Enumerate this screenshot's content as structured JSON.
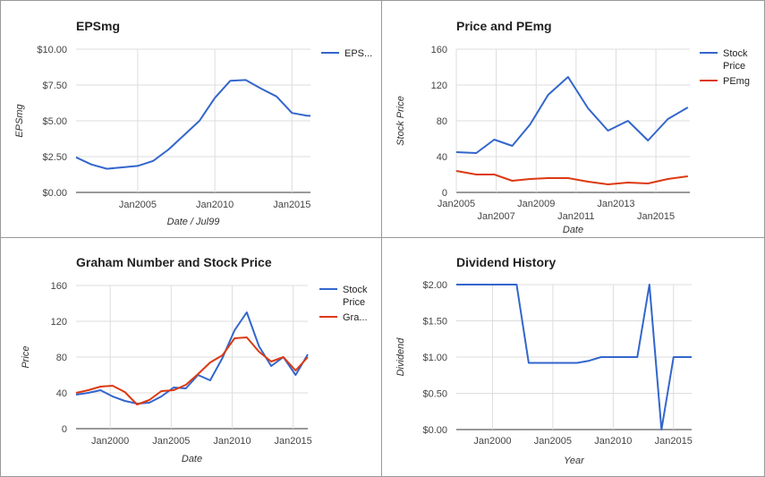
{
  "colors": {
    "blue": "#3366cc",
    "red": "#dc3912"
  },
  "chart_data": [
    {
      "type": "line",
      "title": "EPSmg",
      "xlabel": "Date / Jul99",
      "ylabel": "EPSmg",
      "ylim": [
        0,
        10
      ],
      "xlim": [
        2001,
        2016.2
      ],
      "yticks": [
        "$0.00",
        "$2.50",
        "$5.00",
        "$7.50",
        "$10.00"
      ],
      "ytick_values": [
        0,
        2.5,
        5,
        7.5,
        10
      ],
      "xticks": [
        "Jan2005",
        "Jan2010",
        "Jan2015"
      ],
      "xtick_values": [
        2005,
        2010,
        2015
      ],
      "legend_position": "right",
      "series": [
        {
          "name": "EPS...",
          "color": "#3366cc",
          "x": [
            2001,
            2002,
            2003,
            2004,
            2005,
            2006,
            2007,
            2008,
            2009,
            2010,
            2011,
            2012,
            2013,
            2014,
            2015,
            2016,
            2016.2
          ],
          "y": [
            2.45,
            1.95,
            1.65,
            1.75,
            1.85,
            2.2,
            3.0,
            4.0,
            5.0,
            6.6,
            7.8,
            7.85,
            7.25,
            6.7,
            5.55,
            5.35,
            5.35
          ]
        }
      ]
    },
    {
      "type": "line",
      "title": "Price and PEmg",
      "xlabel": "Date",
      "ylabel": "Stock Price",
      "ylim": [
        0,
        160
      ],
      "xlim": [
        2005,
        2016.7
      ],
      "yticks": [
        "0",
        "40",
        "80",
        "120",
        "160"
      ],
      "ytick_values": [
        0,
        40,
        80,
        120,
        160
      ],
      "xticks": [
        "Jan2005",
        "Jan2007",
        "Jan2009",
        "Jan2011",
        "Jan2013",
        "Jan2015"
      ],
      "xtick_values": [
        2005,
        2007,
        2009,
        2011,
        2013,
        2015
      ],
      "legend_position": "right",
      "series": [
        {
          "name": "Stock Price",
          "color": "#3366cc",
          "x": [
            2005,
            2006,
            2006.9,
            2007.8,
            2008.7,
            2009.6,
            2010.6,
            2011.6,
            2012.6,
            2013.6,
            2014.6,
            2015.6,
            2016.6
          ],
          "y": [
            45,
            44,
            59,
            52,
            76,
            109,
            129,
            94,
            69,
            80,
            58,
            82,
            95
          ]
        },
        {
          "name": "PEmg",
          "color": "#dc3912",
          "x": [
            2005,
            2006,
            2006.9,
            2007.8,
            2008.7,
            2009.6,
            2010.6,
            2011.6,
            2012.6,
            2013.6,
            2014.6,
            2015.6,
            2016.6
          ],
          "y": [
            24,
            20,
            20,
            13,
            15,
            16,
            16,
            12,
            9,
            11,
            10,
            15,
            18
          ]
        }
      ]
    },
    {
      "type": "line",
      "title": "Graham Number and Stock Price",
      "xlabel": "Date",
      "ylabel": "Price",
      "ylim": [
        0,
        160
      ],
      "xlim": [
        1997.2,
        2016.2
      ],
      "yticks": [
        "0",
        "40",
        "80",
        "120",
        "160"
      ],
      "ytick_values": [
        0,
        40,
        80,
        120,
        160
      ],
      "xticks": [
        "Jan2000",
        "Jan2005",
        "Jan2010",
        "Jan2015"
      ],
      "xtick_values": [
        2000,
        2005,
        2010,
        2015
      ],
      "legend_position": "right",
      "series": [
        {
          "name": "Stock Price",
          "color": "#3366cc",
          "x": [
            1997.2,
            1998.2,
            1999.2,
            2000.2,
            2001.2,
            2002.2,
            2003.2,
            2004.2,
            2005.2,
            2006.2,
            2007.2,
            2008.2,
            2009.2,
            2010.2,
            2011.2,
            2012.2,
            2013.2,
            2014.2,
            2015.2,
            2016.2
          ],
          "y": [
            38,
            40,
            43,
            36,
            31,
            28,
            29,
            36,
            46,
            45,
            60,
            54,
            79,
            110,
            130,
            92,
            70,
            80,
            60,
            83
          ]
        },
        {
          "name": "Gra...",
          "color": "#dc3912",
          "x": [
            1997.2,
            1998.2,
            1999.2,
            2000.2,
            2001.2,
            2002.2,
            2003.2,
            2004.2,
            2005.2,
            2006.2,
            2007.2,
            2008.2,
            2009.2,
            2010.2,
            2011.2,
            2012.2,
            2013.2,
            2014.2,
            2015.2,
            2016.2
          ],
          "y": [
            40,
            43,
            47,
            48,
            41,
            27,
            32,
            42,
            43,
            49,
            61,
            74,
            82,
            101,
            102,
            86,
            75,
            80,
            65,
            80
          ]
        }
      ]
    },
    {
      "type": "line",
      "title": "Dividend History",
      "xlabel": "Year",
      "ylabel": "Dividend",
      "ylim": [
        0,
        2
      ],
      "xlim": [
        1997,
        2016.5
      ],
      "yticks": [
        "$0.00",
        "$0.50",
        "$1.00",
        "$1.50",
        "$2.00"
      ],
      "ytick_values": [
        0,
        0.5,
        1,
        1.5,
        2
      ],
      "xticks": [
        "Jan2000",
        "Jan2005",
        "Jan2010",
        "Jan2015"
      ],
      "xtick_values": [
        2000,
        2005,
        2010,
        2015
      ],
      "legend_position": "none",
      "series": [
        {
          "name": "",
          "color": "#3366cc",
          "x": [
            1997,
            2002,
            2003,
            2004,
            2005,
            2006,
            2007,
            2008,
            2009,
            2010,
            2011,
            2012,
            2013,
            2014,
            2015,
            2016.5
          ],
          "y": [
            2.0,
            2.0,
            0.92,
            0.92,
            0.92,
            0.92,
            0.92,
            0.95,
            1.0,
            1.0,
            1.0,
            1.0,
            2.0,
            0.0,
            1.0,
            1.0
          ]
        }
      ]
    }
  ]
}
